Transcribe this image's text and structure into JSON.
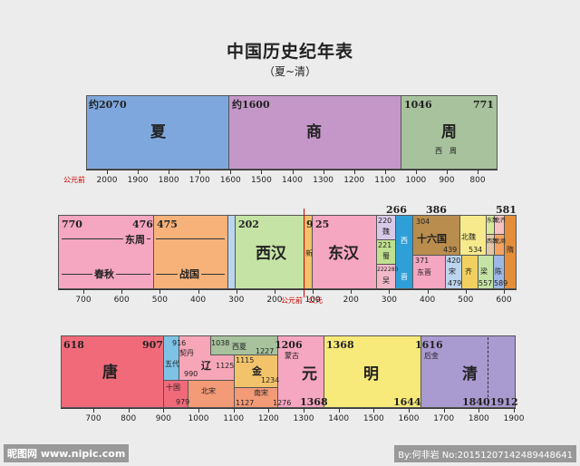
{
  "title": "中国历史纪年表",
  "subtitle": "（夏~清）",
  "row1": {
    "axis_prefix": "公元前",
    "ticks": [
      "2000",
      "1900",
      "1800",
      "1700",
      "1600",
      "1500",
      "1400",
      "1300",
      "1200",
      "1100",
      "1000",
      "900",
      "800"
    ],
    "xia": {
      "label": "夏",
      "start": "约2070",
      "color": "#7ea7dd"
    },
    "shang": {
      "label": "商",
      "start": "约1600",
      "color": "#c497c8"
    },
    "zhou": {
      "label": "周",
      "start": "1046",
      "end": "771",
      "sub": "西　周",
      "color": "#a7c29c"
    }
  },
  "row2": {
    "ticks": [
      "700",
      "600",
      "500",
      "400",
      "300",
      "200",
      "100",
      "200",
      "300",
      "400",
      "500",
      "600"
    ],
    "bc_label": "公元前",
    "ad_label": "公元",
    "dongzhou": {
      "label": "东周",
      "start": "770",
      "end": "476"
    },
    "chunqiu": "春秋",
    "zhanguo": {
      "label": "战国",
      "start": "475"
    },
    "xihan": {
      "label": "西汉",
      "start": "202"
    },
    "xin": {
      "label": "新",
      "start": "9"
    },
    "donghan": {
      "label": "东汉",
      "start": "25"
    },
    "n220": "220",
    "n221": "221",
    "n222": "222",
    "n280": "280",
    "n266": "266",
    "n386": "386",
    "n304": "304",
    "n439": "439",
    "n534": "534",
    "n581": "581",
    "n371": "371",
    "n420": "420",
    "n479": "479",
    "n557": "557",
    "n589": "589",
    "wei": "魏",
    "shu": "蜀",
    "wu": "吴",
    "xijin": "西",
    "jin": "晋",
    "sixteen": "十六国",
    "dongjin": "东晋",
    "song": "宋",
    "qi": "齐",
    "beiwei": "北魏",
    "dongwei": "东魏",
    "xiwei": "西魏",
    "beiqi": "北齐",
    "beizhou": "北周",
    "liang": "梁",
    "chen": "陈",
    "sui": "隋"
  },
  "row3": {
    "ticks": [
      "700",
      "800",
      "900",
      "1000",
      "1100",
      "1200",
      "1300",
      "1400",
      "1500",
      "1600",
      "1700",
      "1800",
      "1900"
    ],
    "tang": {
      "label": "唐",
      "start": "618",
      "end": "907"
    },
    "wudai": "五代",
    "shiguo": "十国",
    "n979": "979",
    "liao": {
      "label": "辽",
      "start": "916",
      "end": "1125",
      "sub": "契丹"
    },
    "n990": "990",
    "xixia": {
      "label": "西夏",
      "start": "1038",
      "end": "1227"
    },
    "jin": {
      "label": "金",
      "start": "1115",
      "end": "1234"
    },
    "beisong": "北宋",
    "n1127": "1127",
    "nansong": {
      "label": "南宋",
      "end": "1276"
    },
    "yuan": {
      "label": "元",
      "start": "1206",
      "end": "1368",
      "sub": "蒙古"
    },
    "ming": {
      "label": "明",
      "start": "1368",
      "end": "1644"
    },
    "qing": {
      "label": "清",
      "start": "1616",
      "sub": "后金",
      "end1": "1840",
      "end2": "1912"
    }
  },
  "footer": {
    "left": "昵图网 www.nipic.com",
    "right": "By:何非岩 No:20151207142489448641",
    "badge": "悟空问答"
  }
}
